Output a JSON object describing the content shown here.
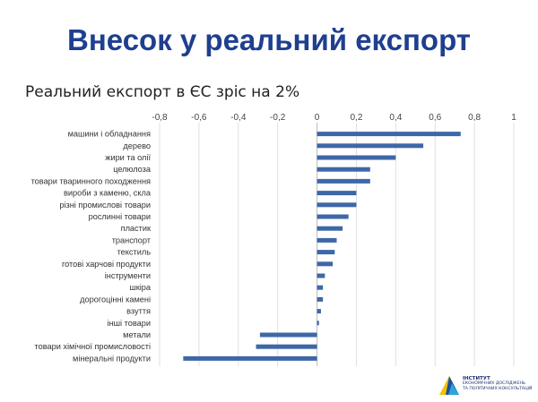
{
  "page": {
    "title": "Внесок у реальний експорт"
  },
  "logo": {
    "line1": "ІНСТИТУТ",
    "line2": "ЕКОНОМІЧНИХ ДОСЛІДЖЕНЬ",
    "line3": "ТА ПОЛІТИЧНИХ КОНСУЛЬТАЦІЙ",
    "colors": [
      "#f2c200",
      "#1f4e99",
      "#2aa6d9"
    ]
  },
  "chart_data": {
    "type": "bar",
    "orientation": "horizontal",
    "title": "Реальний експорт в ЄС зріс на 2%",
    "xlabel": "",
    "ylabel": "",
    "xlim": [
      -0.8,
      1
    ],
    "xticks": [
      "-0,8",
      "-0,6",
      "-0,4",
      "-0,2",
      "0",
      "0,2",
      "0,4",
      "0,6",
      "0,8",
      "1"
    ],
    "xtick_values": [
      -0.8,
      -0.6,
      -0.4,
      -0.2,
      0,
      0.2,
      0.4,
      0.6,
      0.8,
      1
    ],
    "grid": true,
    "legend": "none",
    "bar_color": "#3d68a8",
    "categories": [
      "машини і обладнання",
      "дерево",
      "жири та олії",
      "целюлоза",
      "товари тваринного походження",
      "вироби з каменю, скла",
      "різні промислові товари",
      "рослинні товари",
      "пластик",
      "транспорт",
      "текстиль",
      "готові харчові продукти",
      "інструменти",
      "шкіра",
      "дорогоцінні камені",
      "взуття",
      "інші товари",
      "метали",
      "товари хімічної промисловості",
      "мінеральні продукти"
    ],
    "values": [
      0.73,
      0.54,
      0.4,
      0.27,
      0.27,
      0.2,
      0.2,
      0.16,
      0.13,
      0.1,
      0.09,
      0.08,
      0.04,
      0.03,
      0.03,
      0.02,
      0.01,
      -0.29,
      -0.31,
      -0.68
    ]
  }
}
